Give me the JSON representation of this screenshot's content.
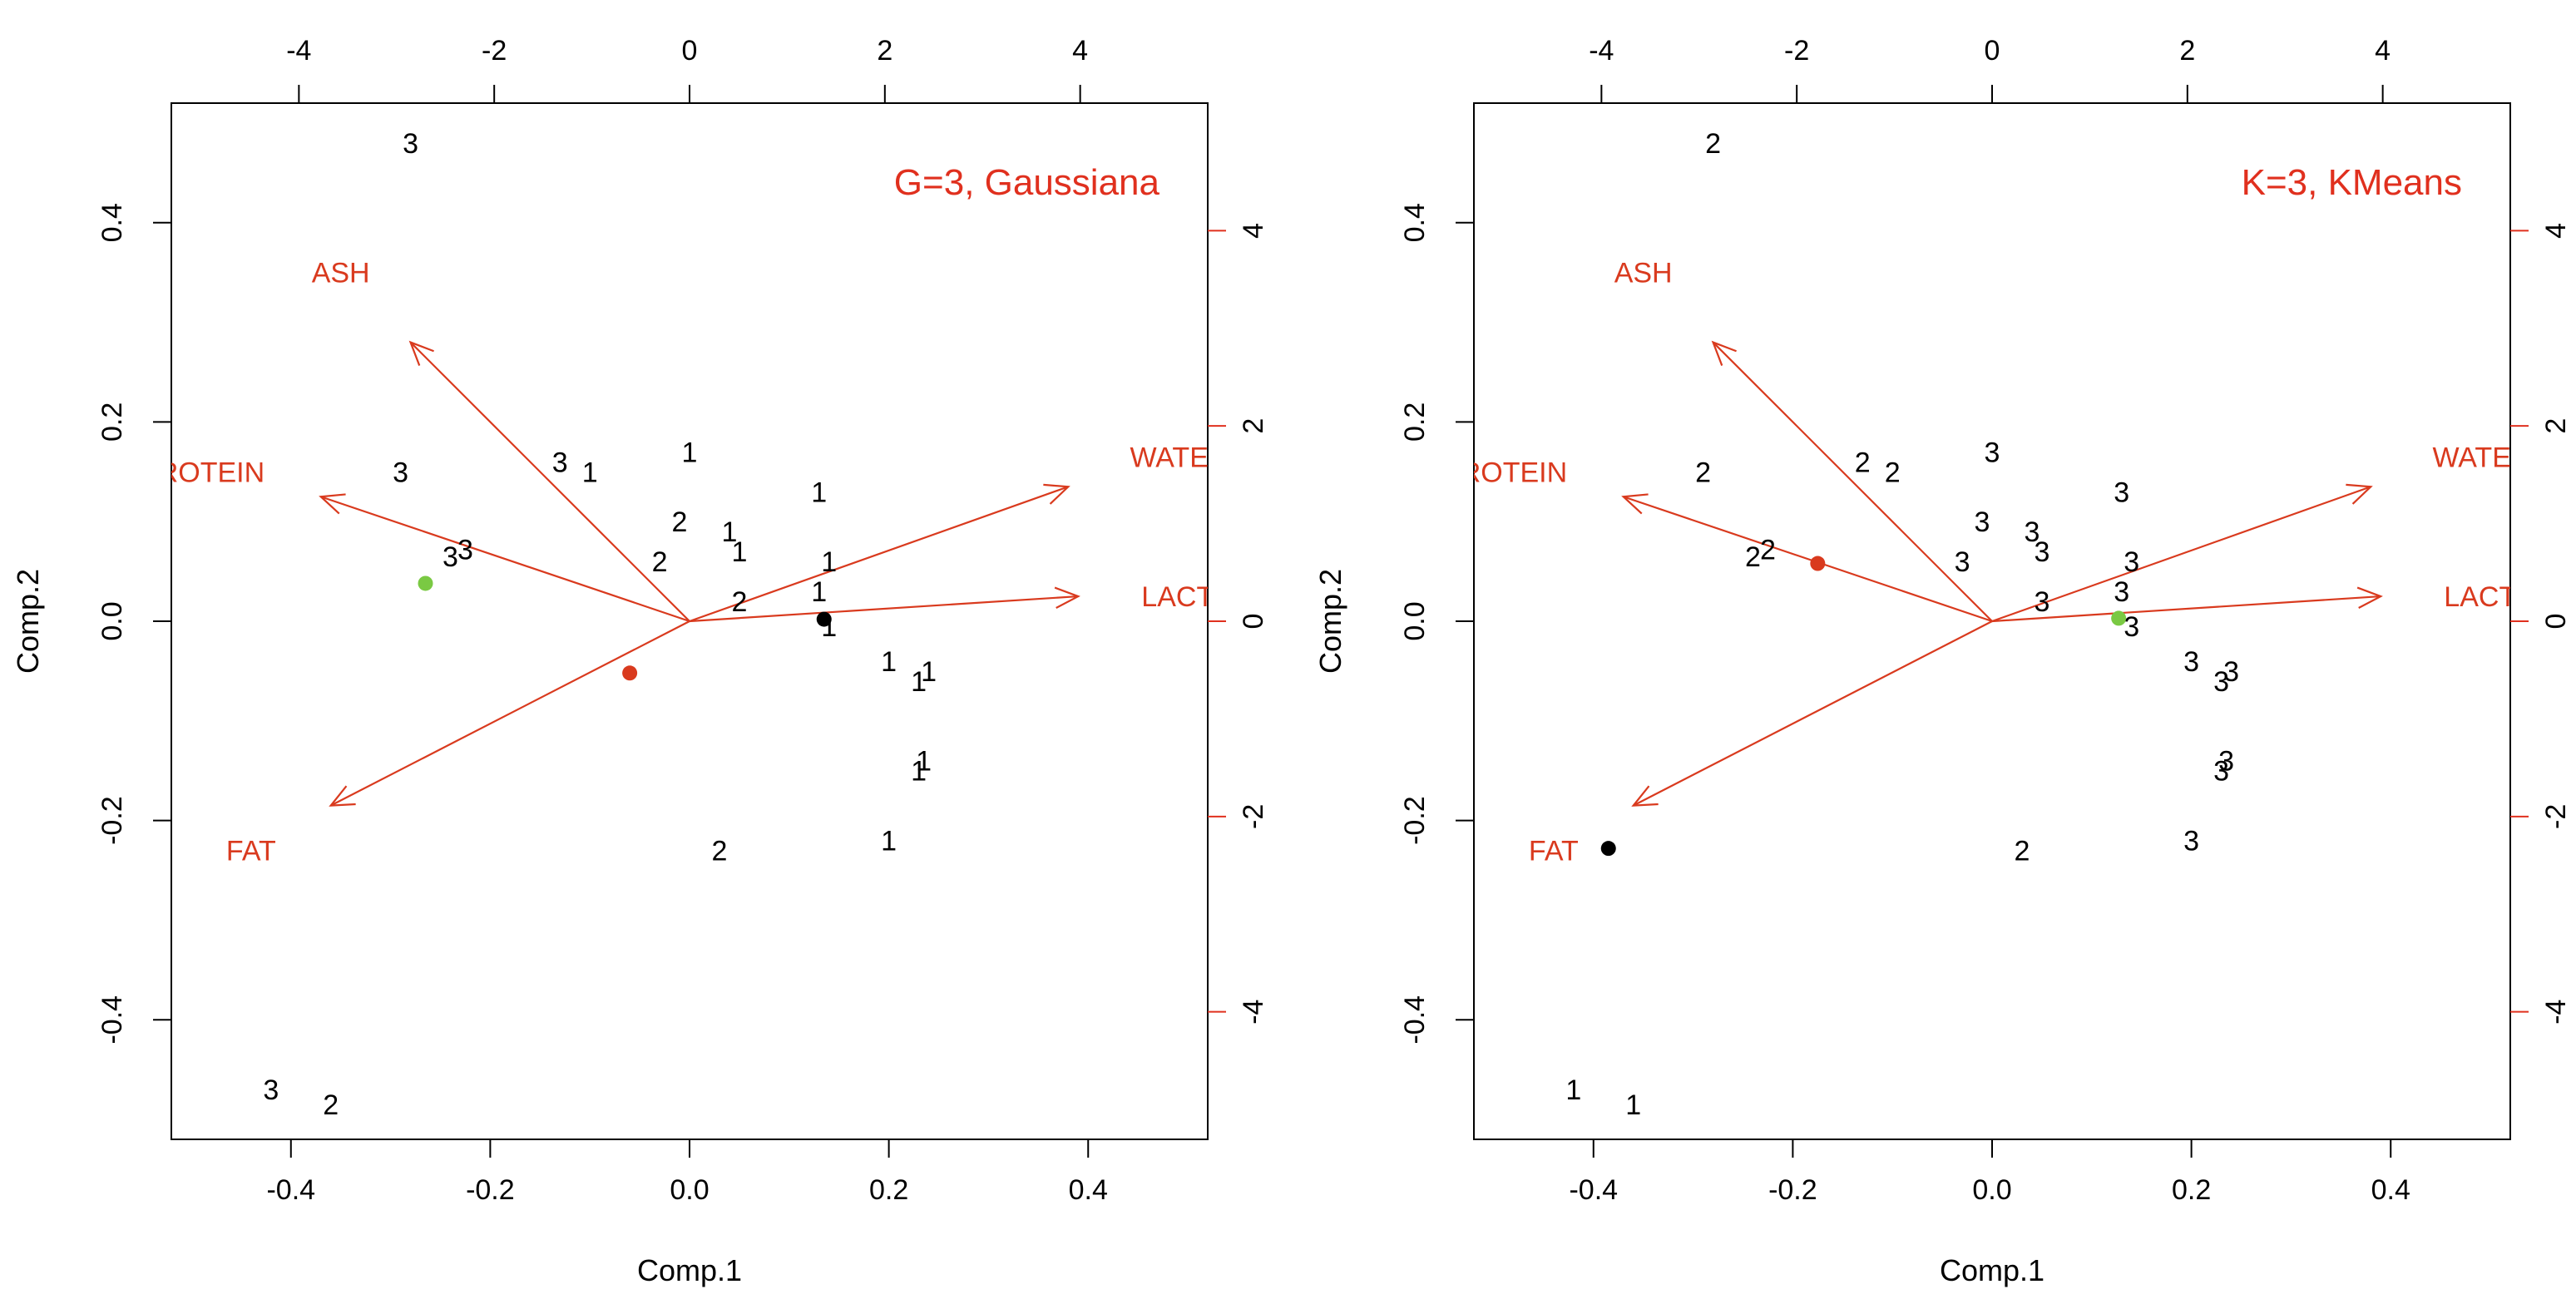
{
  "colors": {
    "axis": "#000000",
    "arrow": "#d93a1e",
    "secondary_axis": "#e0301e",
    "title": "#e0301e"
  },
  "chart_data": [
    {
      "type": "scatter",
      "subtype": "biplot",
      "title": "G=3, Gaussiana",
      "xlabel": "Comp.1",
      "ylabel": "Comp.2",
      "xlim": [
        -0.52,
        0.52
      ],
      "ylim": [
        -0.52,
        0.52
      ],
      "x_ticks": [
        -0.4,
        -0.2,
        0.0,
        0.2,
        0.4
      ],
      "y_ticks": [
        -0.4,
        -0.2,
        0.0,
        0.2,
        0.4
      ],
      "x_tick_labels": [
        "-0.4",
        "-0.2",
        "0.0",
        "0.2",
        "0.4"
      ],
      "y_tick_labels": [
        "-0.4",
        "-0.2",
        "0.0",
        "0.2",
        "0.4"
      ],
      "top_ticks": [
        -4,
        -2,
        0,
        2,
        4
      ],
      "top_tick_labels": [
        "-4",
        "-2",
        "0",
        "2",
        "4"
      ],
      "right_ticks": [
        -4,
        -2,
        0,
        2,
        4
      ],
      "right_tick_labels": [
        "-4",
        "-2",
        "0",
        "2",
        "4"
      ],
      "points": [
        {
          "x": -0.28,
          "y": 0.48,
          "label": "3"
        },
        {
          "x": -0.13,
          "y": 0.16,
          "label": "3"
        },
        {
          "x": -0.1,
          "y": 0.15,
          "label": "1"
        },
        {
          "x": 0.0,
          "y": 0.17,
          "label": "1"
        },
        {
          "x": -0.29,
          "y": 0.15,
          "label": "3"
        },
        {
          "x": 0.13,
          "y": 0.13,
          "label": "1"
        },
        {
          "x": -0.01,
          "y": 0.1,
          "label": "2"
        },
        {
          "x": 0.04,
          "y": 0.09,
          "label": "1"
        },
        {
          "x": 0.05,
          "y": 0.07,
          "label": "1"
        },
        {
          "x": 0.14,
          "y": 0.06,
          "label": "1"
        },
        {
          "x": -0.03,
          "y": 0.06,
          "label": "2"
        },
        {
          "x": -0.24,
          "y": 0.065,
          "label": "3"
        },
        {
          "x": -0.225,
          "y": 0.072,
          "label": "3"
        },
        {
          "x": 0.05,
          "y": 0.02,
          "label": "2"
        },
        {
          "x": 0.13,
          "y": 0.03,
          "label": "1"
        },
        {
          "x": 0.14,
          "y": -0.005,
          "label": "1"
        },
        {
          "x": 0.2,
          "y": -0.04,
          "label": "1"
        },
        {
          "x": 0.24,
          "y": -0.05,
          "label": "1"
        },
        {
          "x": 0.23,
          "y": -0.06,
          "label": "1"
        },
        {
          "x": 0.23,
          "y": -0.15,
          "label": "1"
        },
        {
          "x": 0.235,
          "y": -0.14,
          "label": "1"
        },
        {
          "x": 0.2,
          "y": -0.22,
          "label": "1"
        },
        {
          "x": 0.03,
          "y": -0.23,
          "label": "2"
        },
        {
          "x": -0.42,
          "y": -0.47,
          "label": "3"
        },
        {
          "x": -0.36,
          "y": -0.485,
          "label": "2"
        }
      ],
      "centroids": [
        {
          "x": -0.265,
          "y": 0.038,
          "color": "#7ac943"
        },
        {
          "x": -0.06,
          "y": -0.052,
          "color": "#d93a1e"
        },
        {
          "x": 0.135,
          "y": 0.002,
          "color": "#000000"
        }
      ],
      "loadings": [
        {
          "label": "ASH",
          "x": -0.28,
          "y": 0.28,
          "label_x": -0.35,
          "label_y": 0.35
        },
        {
          "label": "ROTEIN",
          "x": -0.37,
          "y": 0.125,
          "label_x": -0.48,
          "label_y": 0.15
        },
        {
          "label": "WATEF",
          "x": 0.38,
          "y": 0.135,
          "label_x": 0.49,
          "label_y": 0.165
        },
        {
          "label": "LACTOS",
          "x": 0.39,
          "y": 0.025,
          "label_x": 0.51,
          "label_y": 0.025
        },
        {
          "label": "FAT",
          "x": -0.36,
          "y": -0.185,
          "label_x": -0.44,
          "label_y": -0.23
        }
      ]
    },
    {
      "type": "scatter",
      "subtype": "biplot",
      "title": "K=3, KMeans",
      "xlabel": "Comp.1",
      "ylabel": "Comp.2",
      "xlim": [
        -0.52,
        0.52
      ],
      "ylim": [
        -0.52,
        0.52
      ],
      "x_ticks": [
        -0.4,
        -0.2,
        0.0,
        0.2,
        0.4
      ],
      "y_ticks": [
        -0.4,
        -0.2,
        0.0,
        0.2,
        0.4
      ],
      "x_tick_labels": [
        "-0.4",
        "-0.2",
        "0.0",
        "0.2",
        "0.4"
      ],
      "y_tick_labels": [
        "-0.4",
        "-0.2",
        "0.0",
        "0.2",
        "0.4"
      ],
      "top_ticks": [
        -4,
        -2,
        0,
        2,
        4
      ],
      "top_tick_labels": [
        "-4",
        "-2",
        "0",
        "2",
        "4"
      ],
      "right_ticks": [
        -4,
        -2,
        0,
        2,
        4
      ],
      "right_tick_labels": [
        "-4",
        "-2",
        "0",
        "2",
        "4"
      ],
      "points": [
        {
          "x": -0.28,
          "y": 0.48,
          "label": "2"
        },
        {
          "x": -0.13,
          "y": 0.16,
          "label": "2"
        },
        {
          "x": -0.1,
          "y": 0.15,
          "label": "2"
        },
        {
          "x": 0.0,
          "y": 0.17,
          "label": "3"
        },
        {
          "x": -0.29,
          "y": 0.15,
          "label": "2"
        },
        {
          "x": 0.13,
          "y": 0.13,
          "label": "3"
        },
        {
          "x": -0.01,
          "y": 0.1,
          "label": "3"
        },
        {
          "x": 0.04,
          "y": 0.09,
          "label": "3"
        },
        {
          "x": 0.05,
          "y": 0.07,
          "label": "3"
        },
        {
          "x": 0.14,
          "y": 0.06,
          "label": "3"
        },
        {
          "x": -0.03,
          "y": 0.06,
          "label": "3"
        },
        {
          "x": -0.24,
          "y": 0.065,
          "label": "2"
        },
        {
          "x": -0.225,
          "y": 0.072,
          "label": "2"
        },
        {
          "x": 0.05,
          "y": 0.02,
          "label": "3"
        },
        {
          "x": 0.13,
          "y": 0.03,
          "label": "3"
        },
        {
          "x": 0.14,
          "y": -0.005,
          "label": "3"
        },
        {
          "x": 0.2,
          "y": -0.04,
          "label": "3"
        },
        {
          "x": 0.24,
          "y": -0.05,
          "label": "3"
        },
        {
          "x": 0.23,
          "y": -0.06,
          "label": "3"
        },
        {
          "x": 0.23,
          "y": -0.15,
          "label": "3"
        },
        {
          "x": 0.235,
          "y": -0.14,
          "label": "3"
        },
        {
          "x": 0.2,
          "y": -0.22,
          "label": "3"
        },
        {
          "x": 0.03,
          "y": -0.23,
          "label": "2"
        },
        {
          "x": -0.42,
          "y": -0.47,
          "label": "1"
        },
        {
          "x": -0.36,
          "y": -0.485,
          "label": "1"
        }
      ],
      "centroids": [
        {
          "x": -0.175,
          "y": 0.058,
          "color": "#d93a1e"
        },
        {
          "x": 0.127,
          "y": 0.003,
          "color": "#7ac943"
        },
        {
          "x": -0.385,
          "y": -0.228,
          "color": "#000000"
        }
      ],
      "loadings": [
        {
          "label": "ASH",
          "x": -0.28,
          "y": 0.28,
          "label_x": -0.35,
          "label_y": 0.35
        },
        {
          "label": "ROTEIN",
          "x": -0.37,
          "y": 0.125,
          "label_x": -0.48,
          "label_y": 0.15
        },
        {
          "label": "WATEF",
          "x": 0.38,
          "y": 0.135,
          "label_x": 0.49,
          "label_y": 0.165
        },
        {
          "label": "LACTOS",
          "x": 0.39,
          "y": 0.025,
          "label_x": 0.51,
          "label_y": 0.025
        },
        {
          "label": "FAT",
          "x": -0.36,
          "y": -0.185,
          "label_x": -0.44,
          "label_y": -0.23
        }
      ]
    }
  ]
}
